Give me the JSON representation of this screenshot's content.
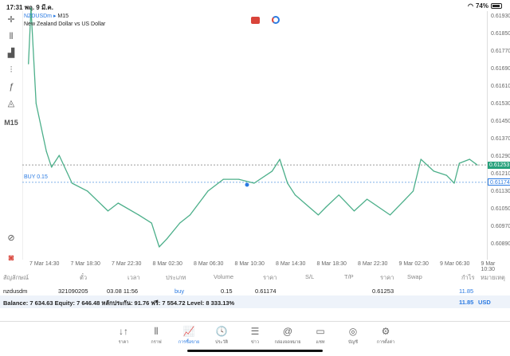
{
  "status": {
    "time": "17:31",
    "date": "พฤ. 9 มี.ค.",
    "battery": "74%"
  },
  "symbol": {
    "name": "NZDUSDm",
    "timeframe": "M15",
    "description": "New Zealand Dollar vs US Dollar",
    "timeframe_badge": "M15"
  },
  "colors": {
    "line": "#4caf8a",
    "accent": "#2a7ae2",
    "bid_tag": "#26a17b"
  },
  "chart_data": {
    "type": "line",
    "ylim": [
      0.6085,
      0.6197
    ],
    "y_ticks": [
      "0.61930",
      "0.61850",
      "0.61770",
      "0.61690",
      "0.61610",
      "0.61530",
      "0.61450",
      "0.61370",
      "0.61290",
      "0.61210",
      "0.61130",
      "0.61050",
      "0.60970",
      "0.60890"
    ],
    "x_ticks": [
      "7 Mar 14:30",
      "7 Mar 18:30",
      "7 Mar 22:30",
      "8 Mar 02:30",
      "8 Mar 06:30",
      "8 Mar 10:30",
      "8 Mar 14:30",
      "8 Mar 18:30",
      "8 Mar 22:30",
      "9 Mar 02:30",
      "9 Mar 06:30",
      "9 Mar 10:30"
    ],
    "current_price": "0.61253",
    "order_line": {
      "label": "BUY 0.15",
      "price": "0.61174"
    },
    "points": [
      [
        "7 Mar 13:00",
        0.61715
      ],
      [
        "7 Mar 13:15",
        0.6197
      ],
      [
        "7 Mar 13:45",
        0.61534
      ],
      [
        "7 Mar 14:45",
        0.61315
      ],
      [
        "7 Mar 15:15",
        0.61243
      ],
      [
        "7 Mar 16:00",
        0.61297
      ],
      [
        "7 Mar 17:15",
        0.6117
      ],
      [
        "7 Mar 18:45",
        0.61134
      ],
      [
        "7 Mar 20:45",
        0.61043
      ],
      [
        "7 Mar 21:45",
        0.61079
      ],
      [
        "7 Mar 23:45",
        0.61025
      ],
      [
        "8 Mar 01:00",
        0.60988
      ],
      [
        "8 Mar 01:45",
        0.60879
      ],
      [
        "8 Mar 02:30",
        0.60916
      ],
      [
        "8 Mar 03:45",
        0.60988
      ],
      [
        "8 Mar 04:45",
        0.61025
      ],
      [
        "8 Mar 06:30",
        0.61134
      ],
      [
        "8 Mar 08:00",
        0.61188
      ],
      [
        "8 Mar 09:30",
        0.61188
      ],
      [
        "8 Mar 11:00",
        0.6117
      ],
      [
        "8 Mar 12:45",
        0.61225
      ],
      [
        "8 Mar 13:30",
        0.61279
      ],
      [
        "8 Mar 14:15",
        0.6117
      ],
      [
        "8 Mar 15:00",
        0.61116
      ],
      [
        "8 Mar 17:15",
        0.61025
      ],
      [
        "8 Mar 18:00",
        0.61061
      ],
      [
        "8 Mar 19:15",
        0.61116
      ],
      [
        "8 Mar 20:45",
        0.61043
      ],
      [
        "8 Mar 22:00",
        0.61097
      ],
      [
        "9 Mar 00:15",
        0.61025
      ],
      [
        "9 Mar 01:45",
        0.61097
      ],
      [
        "9 Mar 02:30",
        0.61134
      ],
      [
        "9 Mar 03:15",
        0.61279
      ],
      [
        "9 Mar 04:30",
        0.61225
      ],
      [
        "9 Mar 05:45",
        0.61206
      ],
      [
        "9 Mar 06:30",
        0.6117
      ],
      [
        "9 Mar 07:00",
        0.61261
      ],
      [
        "9 Mar 08:00",
        0.61279
      ],
      [
        "9 Mar 08:45",
        0.61253
      ]
    ]
  },
  "table": {
    "headers": [
      "สัญลักษณ์",
      "ตั๋ว",
      "เวลา",
      "ประเภท",
      "Volume",
      "ราคา",
      "S/L",
      "T/P",
      "ราคา",
      "Swap",
      "กำไร",
      "หมายเหตุ"
    ],
    "row": {
      "symbol": "nzdusdm",
      "ticket": "321090205",
      "time": "03.08 11:56",
      "type": "buy",
      "volume": "0.15",
      "open_price": "0.61174",
      "sl": "",
      "tp": "",
      "price": "0.61253",
      "swap": "",
      "profit": "11.85",
      "comment": ""
    }
  },
  "balance": {
    "text": "Balance: 7 634.63 Equity: 7 646.48 หลักประกัน: 91.76 ฟรี: 7 554.72 Level: 8 333.13%",
    "profit": "11.85",
    "currency": "USD"
  },
  "nav": [
    {
      "label": "ราคา",
      "icon": "↓↑"
    },
    {
      "label": "กราฟ",
      "icon": "⫴"
    },
    {
      "label": "การซื้อขาย",
      "icon": "📈"
    },
    {
      "label": "ประวัติ",
      "icon": "🕓"
    },
    {
      "label": "ข่าว",
      "icon": "☰"
    },
    {
      "label": "กล่องจดหมาย",
      "icon": "@"
    },
    {
      "label": "แชท",
      "icon": "▭"
    },
    {
      "label": "บัญชี",
      "icon": "◎"
    },
    {
      "label": "การตั้งค่า",
      "icon": "⚙"
    }
  ]
}
